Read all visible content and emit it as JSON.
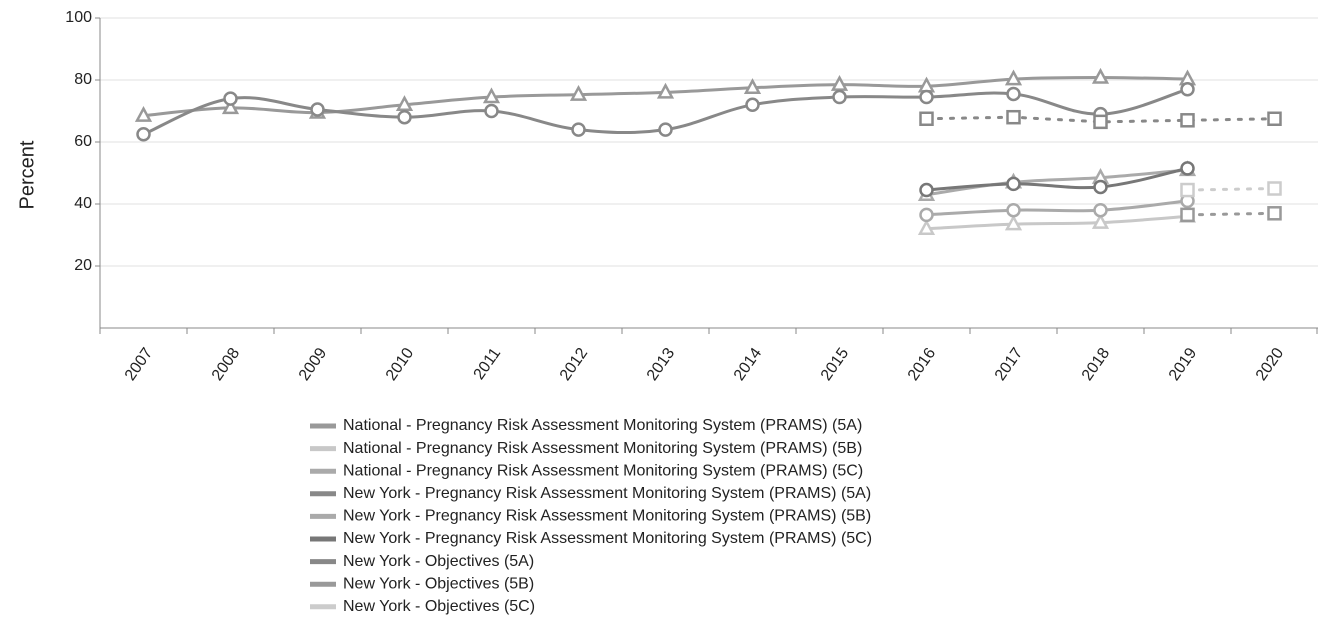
{
  "chart_data": {
    "type": "line",
    "y_label": "Percent",
    "categories": [
      "2007",
      "2008",
      "2009",
      "2010",
      "2011",
      "2012",
      "2013",
      "2014",
      "2015",
      "2016",
      "2017",
      "2018",
      "2019",
      "2020"
    ],
    "ylim": [
      0,
      100
    ],
    "yticks": [
      20,
      40,
      60,
      80,
      100
    ],
    "grid": true,
    "series": [
      {
        "name": "National - Pregnancy Risk Assessment Monitoring System (PRAMS) (5A)",
        "color": "#999999",
        "marker": "triangle",
        "dash": "solid",
        "values": [
          68.5,
          71,
          69.5,
          72,
          74.5,
          75.3,
          76,
          77.5,
          78.5,
          78,
          80.3,
          80.8,
          80.3,
          null
        ]
      },
      {
        "name": "National - Pregnancy Risk Assessment Monitoring System (PRAMS) (5B)",
        "color": "#c8c8c8",
        "marker": "triangle",
        "dash": "solid",
        "values": [
          null,
          null,
          null,
          null,
          null,
          null,
          null,
          null,
          null,
          32,
          33.5,
          34,
          36,
          null
        ]
      },
      {
        "name": "National - Pregnancy Risk Assessment Monitoring System (PRAMS) (5C)",
        "color": "#aaaaaa",
        "marker": "triangle",
        "dash": "solid",
        "values": [
          null,
          null,
          null,
          null,
          null,
          null,
          null,
          null,
          null,
          43,
          47,
          48.5,
          51,
          null
        ]
      },
      {
        "name": "New York - Pregnancy Risk Assessment Monitoring System (PRAMS) (5A)",
        "color": "#888888",
        "marker": "circle",
        "dash": "solid",
        "values": [
          62.5,
          74,
          70.5,
          68,
          70,
          64,
          64,
          72,
          74.5,
          74.5,
          75.5,
          69,
          77,
          null
        ]
      },
      {
        "name": "New York - Pregnancy Risk Assessment Monitoring System (PRAMS) (5B)",
        "color": "#aaaaaa",
        "marker": "circle",
        "dash": "solid",
        "values": [
          null,
          null,
          null,
          null,
          null,
          null,
          null,
          null,
          null,
          36.5,
          38,
          38,
          41,
          null
        ]
      },
      {
        "name": "New York - Pregnancy Risk Assessment Monitoring System (PRAMS) (5C)",
        "color": "#777777",
        "marker": "circle",
        "dash": "solid",
        "values": [
          null,
          null,
          null,
          null,
          null,
          null,
          null,
          null,
          null,
          44.5,
          46.5,
          45.5,
          51.5,
          null
        ]
      },
      {
        "name": "New York - Objectives (5A)",
        "color": "#888888",
        "marker": "square",
        "dash": "dotted",
        "values": [
          null,
          null,
          null,
          null,
          null,
          null,
          null,
          null,
          null,
          67.5,
          68,
          66.5,
          67,
          67.5
        ]
      },
      {
        "name": "New York - Objectives (5B)",
        "color": "#999999",
        "marker": "square",
        "dash": "dotted",
        "values": [
          null,
          null,
          null,
          null,
          null,
          null,
          null,
          null,
          null,
          null,
          null,
          null,
          36.5,
          37
        ]
      },
      {
        "name": "New York - Objectives (5C)",
        "color": "#cccccc",
        "marker": "square",
        "dash": "dotted",
        "values": [
          null,
          null,
          null,
          null,
          null,
          null,
          null,
          null,
          null,
          null,
          null,
          null,
          44.5,
          45
        ]
      }
    ]
  }
}
